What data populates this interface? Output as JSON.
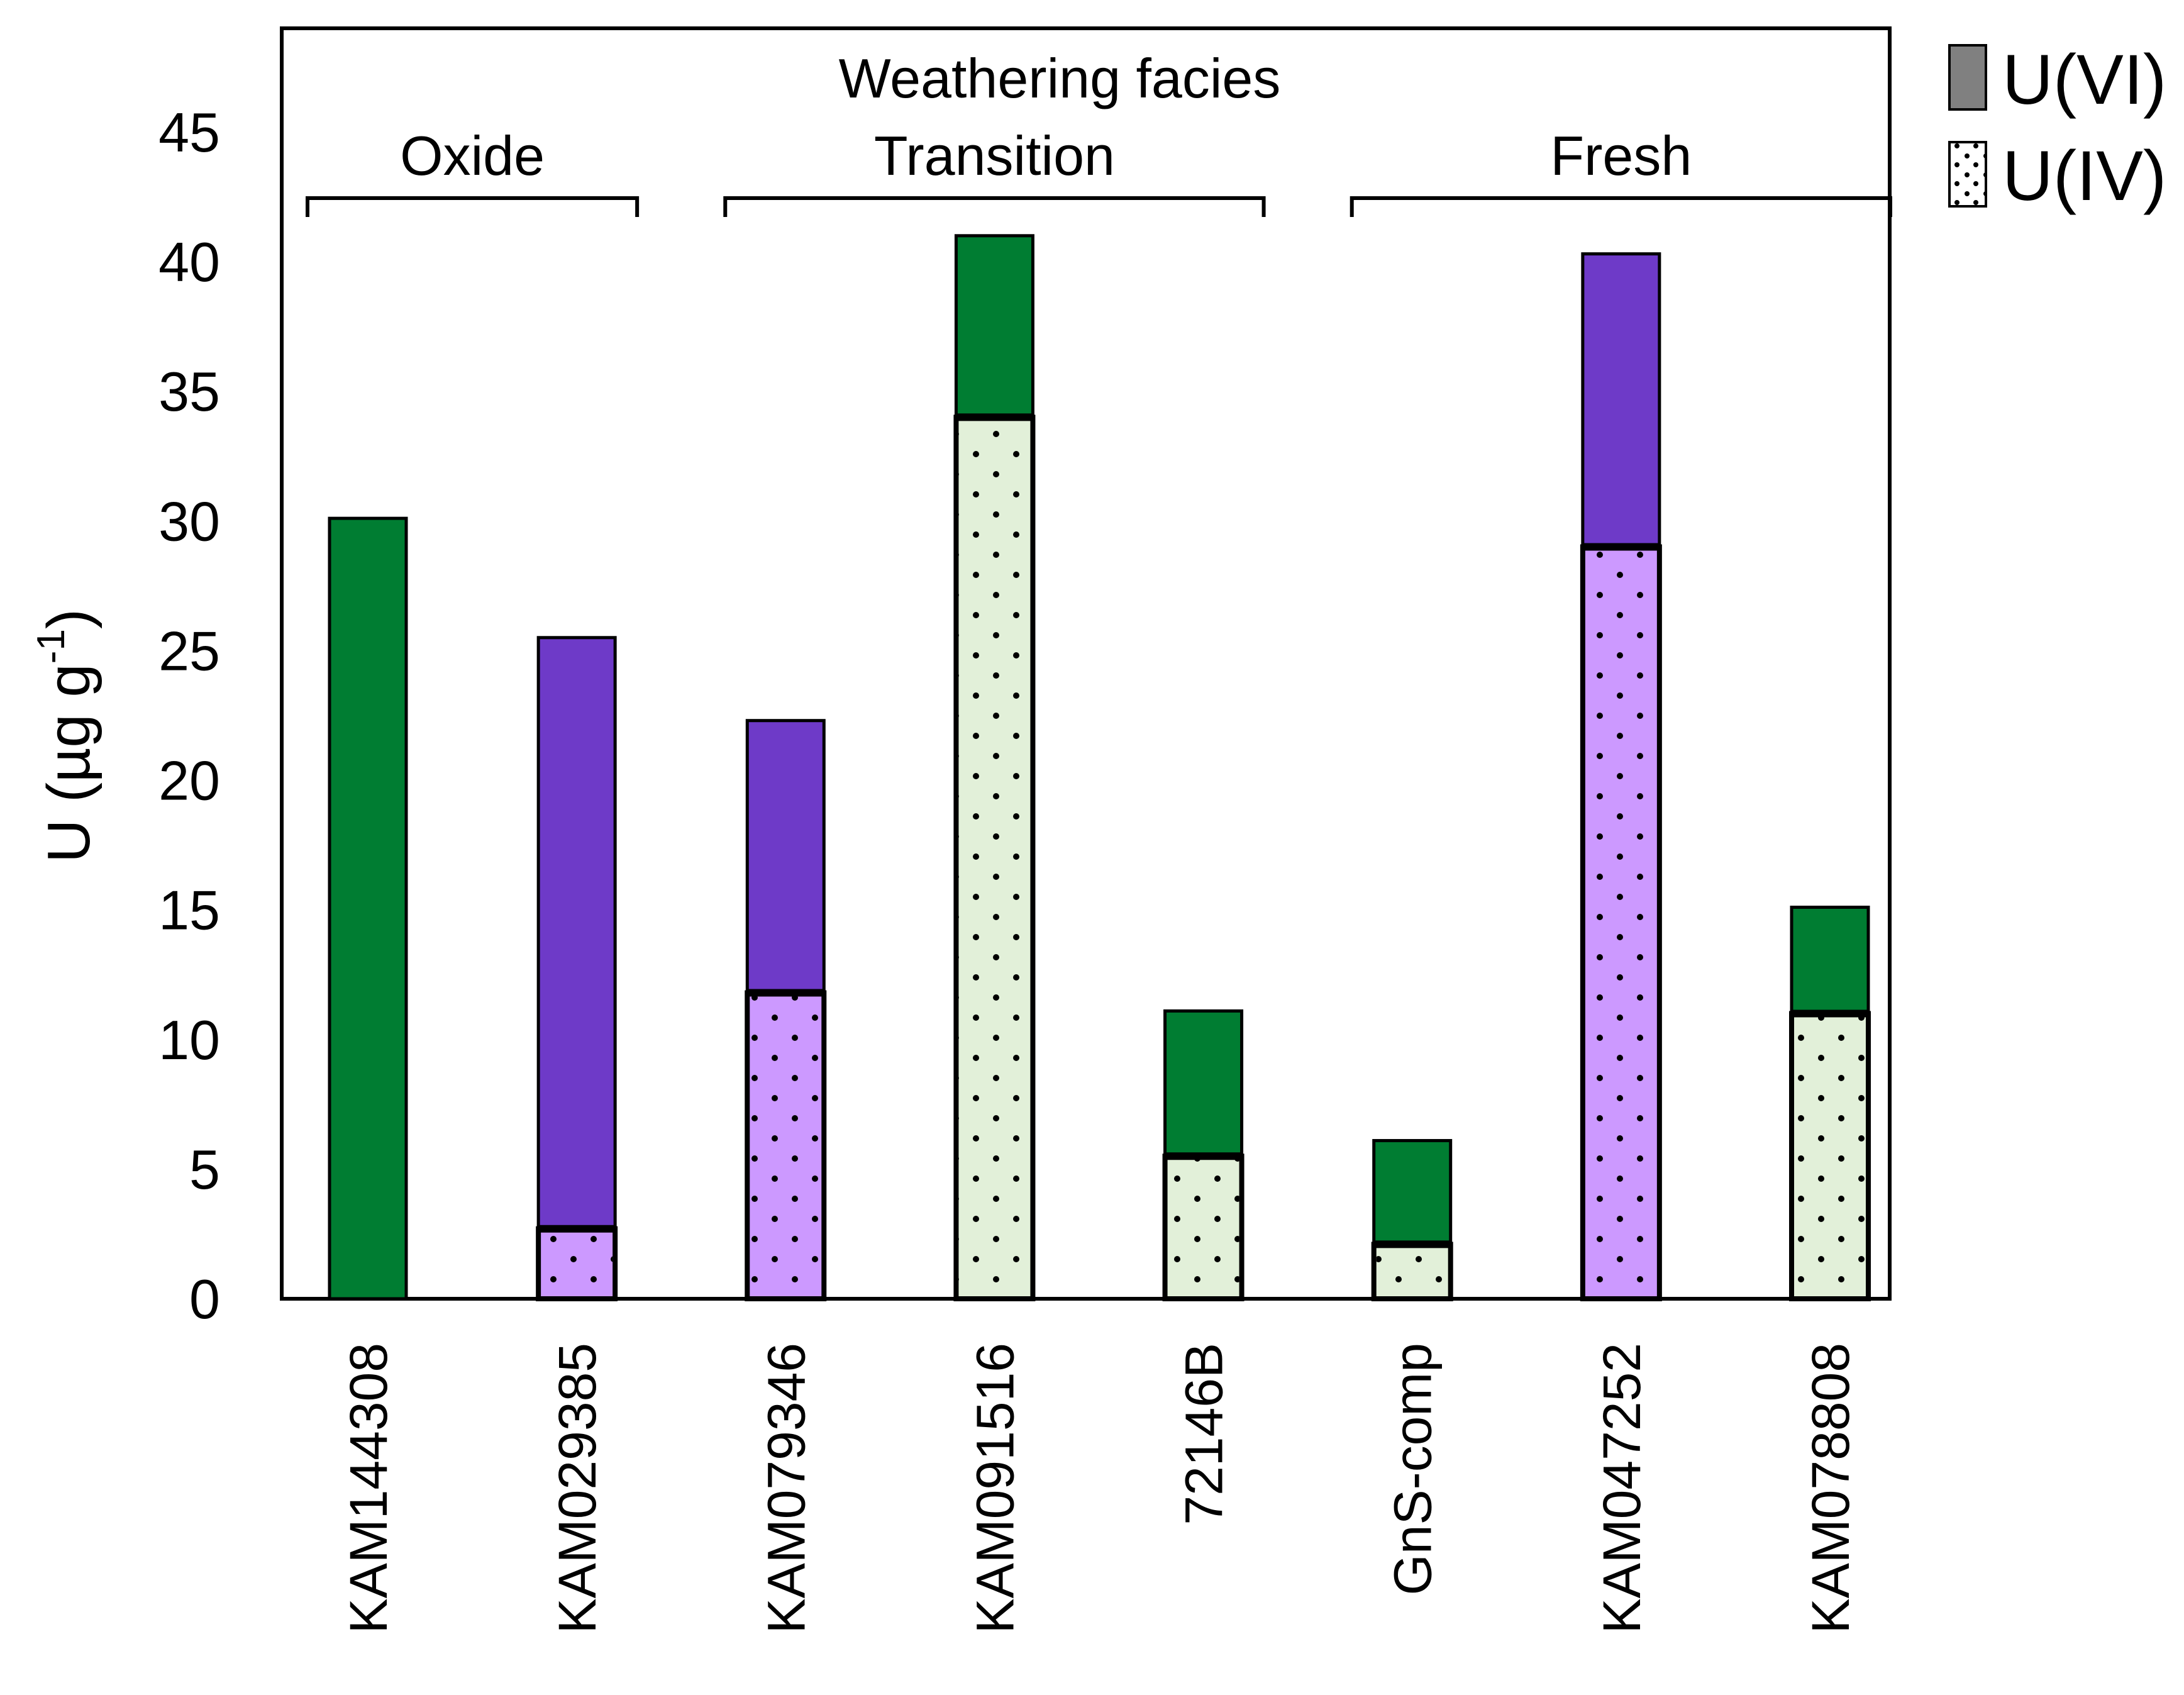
{
  "chart_data": {
    "type": "bar",
    "stacked": true,
    "title": "Weathering facies",
    "ylabel": "U (µg g⁻¹)",
    "ylabel_parts": {
      "base": "U (µg g",
      "sup": "-1",
      "end": ")"
    },
    "ylim": [
      0,
      49
    ],
    "yticks": [
      0,
      5,
      10,
      15,
      20,
      25,
      30,
      35,
      40,
      45
    ],
    "categories": [
      "KAM144308",
      "KAM029385",
      "KAM079346",
      "KAM091516",
      "72146B",
      "GnS-comp",
      "KAM047252",
      "KAM078808"
    ],
    "bar_colors": [
      "#007d32",
      "#6e3ac8",
      "#6e3ac8",
      "#007d32",
      "#007d32",
      "#007d32",
      "#6e3ac8",
      "#007d32"
    ],
    "light_colors": [
      "#e2f0d9",
      "#cc99ff",
      "#cc99ff",
      "#e2f0d9",
      "#e2f0d9",
      "#e2f0d9",
      "#cc99ff",
      "#e2f0d9"
    ],
    "series": [
      {
        "name": "U(IV)",
        "pattern": "dotted",
        "values": [
          0,
          2.7,
          11.8,
          34.0,
          5.5,
          2.1,
          29.0,
          11.0
        ]
      },
      {
        "name": "U(VI)",
        "pattern": "solid",
        "values": [
          30.1,
          22.8,
          10.5,
          7.0,
          5.6,
          4.0,
          11.3,
          4.1
        ]
      }
    ],
    "groups": [
      {
        "label": "Oxide",
        "from": 0,
        "to": 1
      },
      {
        "label": "Transition",
        "from": 2,
        "to": 4
      },
      {
        "label": "Fresh",
        "from": 5,
        "to": 7
      }
    ],
    "legend": [
      {
        "label": "U(VI)",
        "color": "#808080",
        "pattern": "solid"
      },
      {
        "label": "U(IV)",
        "color": "#ffffff",
        "pattern": "dotted"
      }
    ],
    "legend_position": "top-right, outside plot"
  }
}
